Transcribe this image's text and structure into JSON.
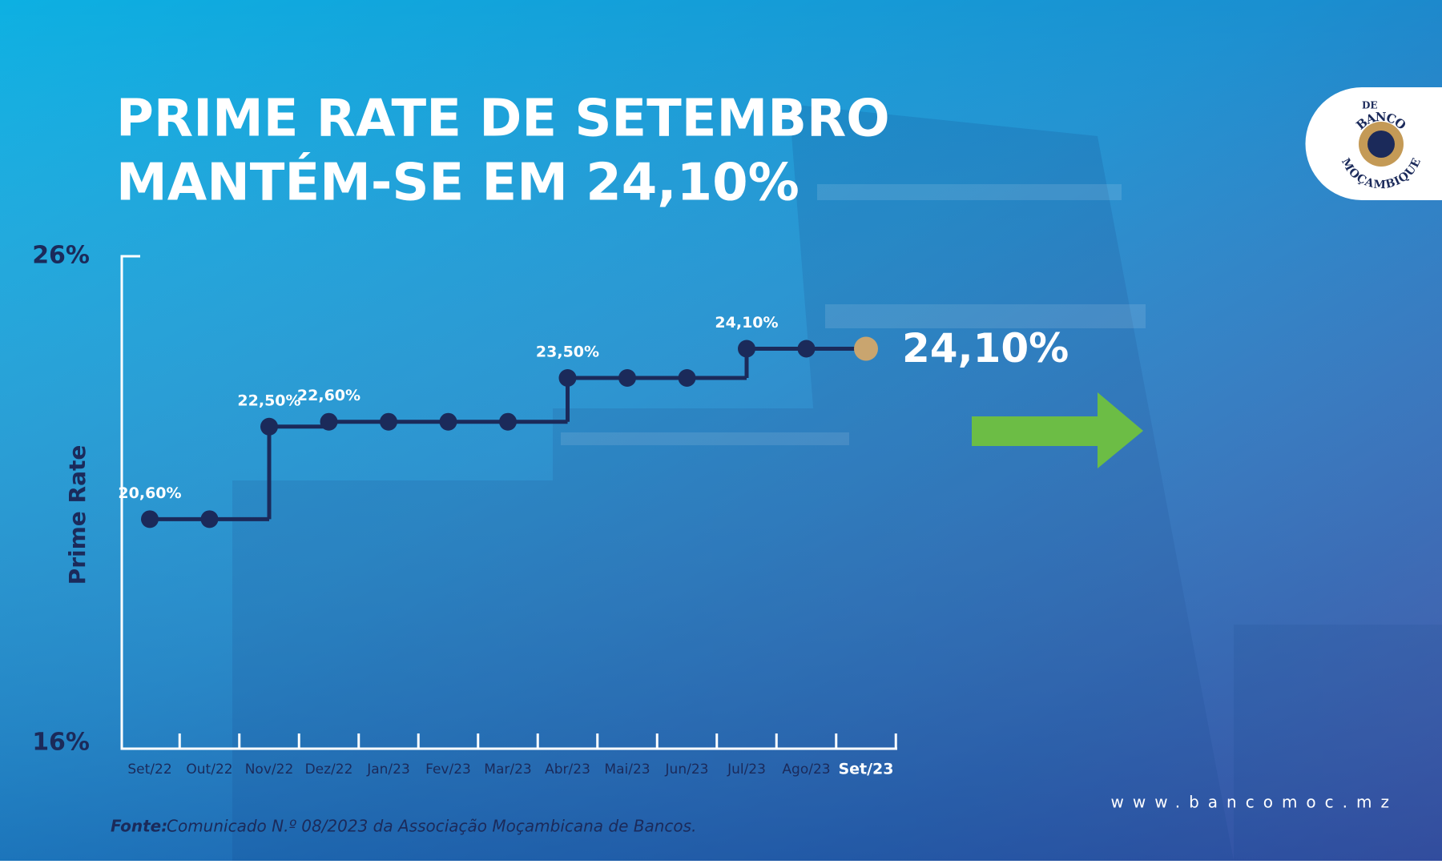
{
  "chart_data": {
    "type": "step",
    "title": [
      "PRIME RATE DE SETEMBRO",
      "MANTÉM-SE EM 24,10%"
    ],
    "y_label": "Prime Rate",
    "categories": [
      "Set/22",
      "Out/22",
      "Nov/22",
      "Dez/22",
      "Jan/23",
      "Fev/23",
      "Mar/23",
      "Abr/23",
      "Mai/23",
      "Jun/23",
      "Jul/23",
      "Ago/23",
      "Set/23"
    ],
    "values": [
      20.6,
      20.6,
      22.5,
      22.6,
      22.6,
      22.6,
      22.6,
      23.5,
      23.5,
      23.5,
      24.1,
      24.1,
      24.1
    ],
    "value_labels": [
      "20,60%",
      null,
      "22,50%",
      "22,60%",
      null,
      null,
      null,
      "23,50%",
      null,
      null,
      "24,10%",
      null,
      "24,10%"
    ],
    "color": "#1b2a5a",
    "highlight_color": "#c9a56f",
    "ylim": [
      16,
      26
    ],
    "yticks": [
      {
        "value": 16,
        "label": "16%"
      },
      {
        "value": 26,
        "label": "26%"
      }
    ],
    "source_label": "Fonte:",
    "source": "Comunicado N.º 08/2023 da Associação Moçambicana de Bancos."
  },
  "website": "www.bancomoc.mz",
  "logo": {
    "top": "BANCO",
    "middle": "DE",
    "bottom": "MOÇAMBIQUE"
  }
}
